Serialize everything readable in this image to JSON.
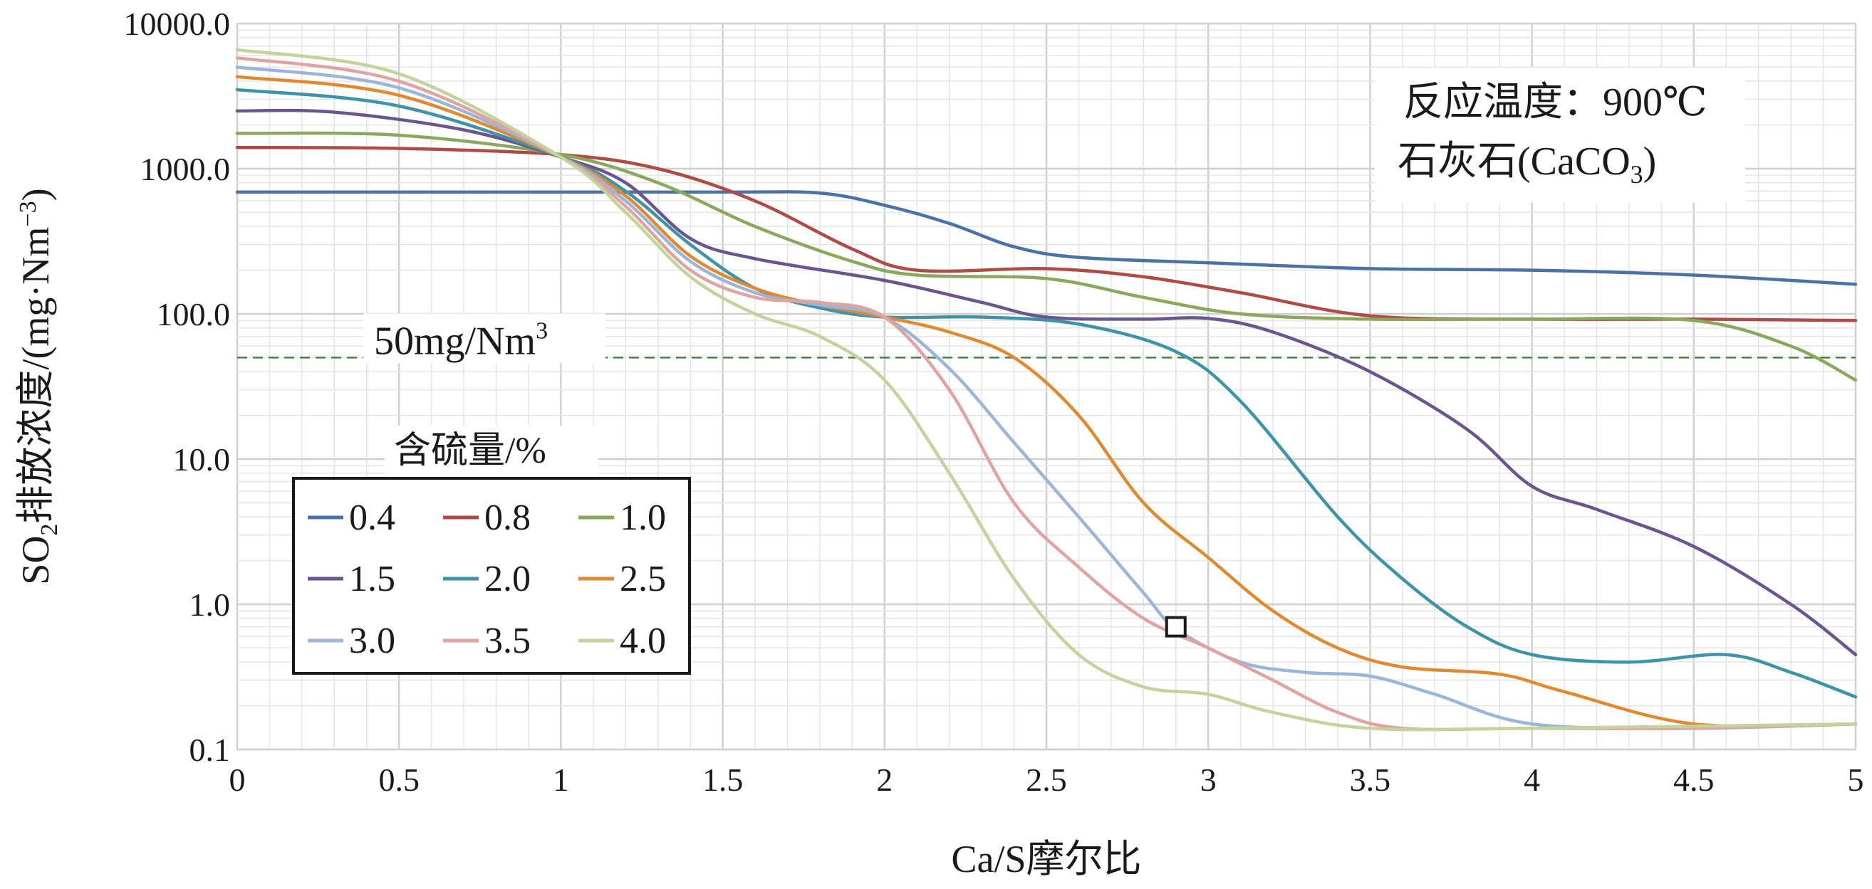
{
  "chart_data": {
    "type": "line",
    "title": "",
    "xlabel": "Ca/S摩尔比",
    "ylabel_parts": [
      "SO",
      "2",
      "排放浓度/(mg·Nm",
      "−3",
      ")"
    ],
    "xlim": [
      0,
      5
    ],
    "ylim": [
      0.1,
      10000
    ],
    "y_scale": "log",
    "grid": true,
    "x_ticks": [
      "0",
      "0.5",
      "1",
      "1.5",
      "2",
      "2.5",
      "3",
      "3.5",
      "4",
      "4.5",
      "5"
    ],
    "y_ticks": [
      "10000.0",
      "1000.0",
      "100.0",
      "10.0",
      "1.0",
      "0.1"
    ],
    "annotations": {
      "line1": "反应温度：900℃",
      "line2_main": "石灰石(CaCO",
      "line2_sub": "3",
      "line2_end": ")"
    },
    "reference_line": {
      "label_main": "50mg/Nm",
      "label_sup": "3",
      "value": 50,
      "color": "#3a8a3a"
    },
    "legend": {
      "title": "含硫量/%",
      "placement": "left-middle"
    },
    "marker_point": {
      "x": 2.9,
      "y": 0.7
    },
    "series": [
      {
        "name": "0.4",
        "color": "#4a72a8",
        "points": [
          [
            0,
            690
          ],
          [
            0.5,
            690
          ],
          [
            1,
            690
          ],
          [
            1.5,
            690
          ],
          [
            1.8,
            680
          ],
          [
            2,
            560
          ],
          [
            2.2,
            420
          ],
          [
            2.4,
            290
          ],
          [
            2.6,
            245
          ],
          [
            3,
            225
          ],
          [
            3.5,
            205
          ],
          [
            4,
            200
          ],
          [
            4.5,
            185
          ],
          [
            5,
            160
          ]
        ]
      },
      {
        "name": "0.8",
        "color": "#b04a46",
        "points": [
          [
            0,
            1400
          ],
          [
            0.5,
            1380
          ],
          [
            1,
            1250
          ],
          [
            1.3,
            1000
          ],
          [
            1.6,
            600
          ],
          [
            1.9,
            280
          ],
          [
            2.1,
            200
          ],
          [
            2.5,
            205
          ],
          [
            2.8,
            180
          ],
          [
            3.1,
            140
          ],
          [
            3.5,
            97
          ],
          [
            4,
            92
          ],
          [
            4.5,
            92
          ],
          [
            5,
            90
          ]
        ]
      },
      {
        "name": "1.0",
        "color": "#8aa85a",
        "points": [
          [
            0,
            1750
          ],
          [
            0.5,
            1700
          ],
          [
            1,
            1250
          ],
          [
            1.3,
            800
          ],
          [
            1.6,
            400
          ],
          [
            1.9,
            230
          ],
          [
            2.1,
            185
          ],
          [
            2.5,
            175
          ],
          [
            2.8,
            130
          ],
          [
            3.1,
            100
          ],
          [
            3.5,
            92
          ],
          [
            4,
            92
          ],
          [
            4.5,
            90
          ],
          [
            4.8,
            60
          ],
          [
            5,
            35
          ]
        ]
      },
      {
        "name": "1.5",
        "color": "#6b558e",
        "points": [
          [
            0,
            2500
          ],
          [
            0.3,
            2450
          ],
          [
            0.7,
            1850
          ],
          [
            1,
            1200
          ],
          [
            1.2,
            800
          ],
          [
            1.4,
            330
          ],
          [
            1.6,
            240
          ],
          [
            2,
            170
          ],
          [
            2.3,
            120
          ],
          [
            2.5,
            95
          ],
          [
            2.8,
            92
          ],
          [
            3,
            93
          ],
          [
            3.2,
            75
          ],
          [
            3.5,
            40
          ],
          [
            3.8,
            16
          ],
          [
            4,
            6.5
          ],
          [
            4.2,
            4.5
          ],
          [
            4.5,
            2.5
          ],
          [
            4.8,
            1.0
          ],
          [
            5,
            0.45
          ]
        ]
      },
      {
        "name": "2.0",
        "color": "#3d93a8",
        "points": [
          [
            0,
            3500
          ],
          [
            0.5,
            2700
          ],
          [
            1,
            1200
          ],
          [
            1.2,
            700
          ],
          [
            1.4,
            300
          ],
          [
            1.6,
            150
          ],
          [
            1.8,
            110
          ],
          [
            2,
            95
          ],
          [
            2.3,
            95
          ],
          [
            2.6,
            85
          ],
          [
            2.9,
            55
          ],
          [
            3.1,
            25
          ],
          [
            3.4,
            4
          ],
          [
            3.6,
            1.5
          ],
          [
            3.8,
            0.7
          ],
          [
            4,
            0.45
          ],
          [
            4.3,
            0.4
          ],
          [
            4.6,
            0.45
          ],
          [
            4.8,
            0.34
          ],
          [
            5,
            0.23
          ]
        ]
      },
      {
        "name": "2.5",
        "color": "#e0892e",
        "points": [
          [
            0,
            4300
          ],
          [
            0.5,
            3200
          ],
          [
            1,
            1200
          ],
          [
            1.2,
            650
          ],
          [
            1.4,
            250
          ],
          [
            1.6,
            150
          ],
          [
            1.8,
            115
          ],
          [
            2,
            95
          ],
          [
            2.2,
            75
          ],
          [
            2.4,
            50
          ],
          [
            2.6,
            20
          ],
          [
            2.8,
            5
          ],
          [
            3,
            2.1
          ],
          [
            3.2,
            0.9
          ],
          [
            3.4,
            0.5
          ],
          [
            3.6,
            0.37
          ],
          [
            3.9,
            0.33
          ],
          [
            4.1,
            0.25
          ],
          [
            4.5,
            0.15
          ],
          [
            5,
            0.15
          ]
        ]
      },
      {
        "name": "3.0",
        "color": "#9ab5d8",
        "points": [
          [
            0,
            5000
          ],
          [
            0.5,
            3600
          ],
          [
            1,
            1200
          ],
          [
            1.2,
            600
          ],
          [
            1.4,
            230
          ],
          [
            1.6,
            140
          ],
          [
            1.8,
            115
          ],
          [
            2,
            95
          ],
          [
            2.2,
            42
          ],
          [
            2.4,
            13
          ],
          [
            2.6,
            4
          ],
          [
            2.8,
            1.2
          ],
          [
            2.9,
            0.68
          ],
          [
            3.1,
            0.4
          ],
          [
            3.3,
            0.34
          ],
          [
            3.5,
            0.32
          ],
          [
            3.7,
            0.24
          ],
          [
            4,
            0.15
          ],
          [
            4.5,
            0.14
          ],
          [
            5,
            0.15
          ]
        ]
      },
      {
        "name": "3.5",
        "color": "#e0a3a0",
        "points": [
          [
            0,
            5800
          ],
          [
            0.5,
            4000
          ],
          [
            1,
            1200
          ],
          [
            1.2,
            550
          ],
          [
            1.4,
            200
          ],
          [
            1.6,
            130
          ],
          [
            1.8,
            120
          ],
          [
            2,
            95
          ],
          [
            2.2,
            30
          ],
          [
            2.4,
            5
          ],
          [
            2.6,
            1.8
          ],
          [
            2.8,
            0.8
          ],
          [
            3,
            0.5
          ],
          [
            3.2,
            0.3
          ],
          [
            3.4,
            0.18
          ],
          [
            3.6,
            0.14
          ],
          [
            4,
            0.14
          ],
          [
            4.5,
            0.14
          ],
          [
            5,
            0.15
          ]
        ]
      },
      {
        "name": "4.0",
        "color": "#c2d39c",
        "points": [
          [
            0,
            6600
          ],
          [
            0.5,
            4500
          ],
          [
            1,
            1200
          ],
          [
            1.2,
            500
          ],
          [
            1.4,
            180
          ],
          [
            1.6,
            100
          ],
          [
            1.8,
            70
          ],
          [
            2,
            35
          ],
          [
            2.2,
            8
          ],
          [
            2.4,
            1.5
          ],
          [
            2.6,
            0.45
          ],
          [
            2.8,
            0.27
          ],
          [
            3,
            0.24
          ],
          [
            3.2,
            0.18
          ],
          [
            3.5,
            0.14
          ],
          [
            4,
            0.14
          ],
          [
            5,
            0.15
          ]
        ]
      }
    ]
  }
}
